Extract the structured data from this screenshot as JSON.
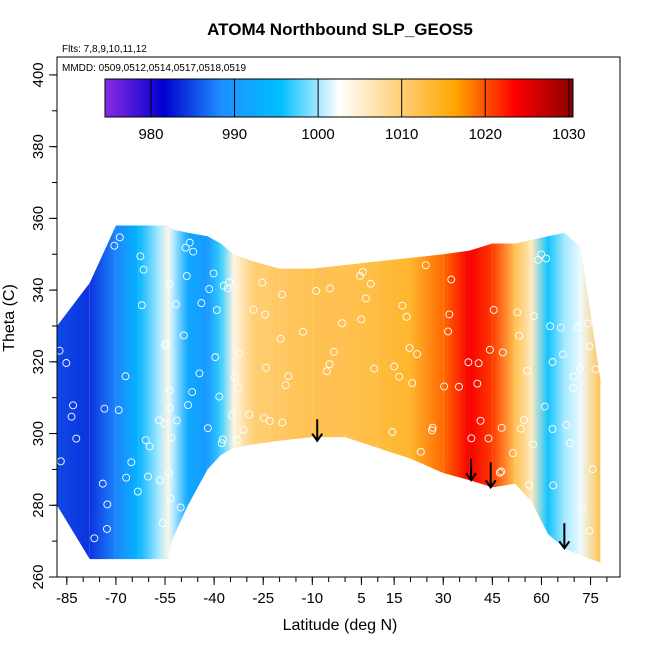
{
  "chart_data": {
    "type": "heatmap",
    "title": "ATOM4 Northbound SLP_GEOS5",
    "annotations": [
      "Flts: 7,8,9,10,11,12",
      "MMDD: 0509,0512,0514,0517,0518,0519"
    ],
    "xlabel": "Latitude (deg N)",
    "ylabel": "Theta (C)",
    "xlim": [
      -88,
      84
    ],
    "ylim": [
      260,
      405
    ],
    "x_ticks": [
      -85,
      -70,
      -55,
      -40,
      -25,
      -10,
      5,
      15,
      30,
      45,
      60,
      75
    ],
    "y_ticks": [
      260,
      280,
      300,
      320,
      340,
      360,
      380,
      400
    ],
    "colorbar": {
      "label": "",
      "range": [
        974.5,
        1030.5
      ],
      "ticks": [
        980,
        990,
        1000,
        1010,
        1020,
        1030
      ],
      "colors": [
        "#8a2be2",
        "#0000cd",
        "#1e90ff",
        "#00bfff",
        "#ffffff",
        "#ffd27f",
        "#ffa500",
        "#ff0000",
        "#8b0000"
      ]
    },
    "columns": [
      {
        "x": -88,
        "bottom": 280,
        "top": 330,
        "value": 985
      },
      {
        "x": -78,
        "bottom": 265,
        "top": 342,
        "value": 984
      },
      {
        "x": -70,
        "bottom": 265,
        "top": 358,
        "value": 988
      },
      {
        "x": -63,
        "bottom": 265,
        "top": 358,
        "value": 994
      },
      {
        "x": -57,
        "bottom": 265,
        "top": 358,
        "value": 1000
      },
      {
        "x": -54,
        "bottom": 265,
        "top": 358,
        "value": 1004
      },
      {
        "x": -53,
        "bottom": 270,
        "top": 357,
        "value": 1001
      },
      {
        "x": -48,
        "bottom": 280,
        "top": 356,
        "value": 992
      },
      {
        "x": -42,
        "bottom": 290,
        "top": 355,
        "value": 990
      },
      {
        "x": -38,
        "bottom": 294,
        "top": 353,
        "value": 997
      },
      {
        "x": -34,
        "bottom": 296,
        "top": 350,
        "value": 1004
      },
      {
        "x": -28,
        "bottom": 297,
        "top": 348,
        "value": 1010
      },
      {
        "x": -20,
        "bottom": 298,
        "top": 346,
        "value": 1011
      },
      {
        "x": -10,
        "bottom": 299,
        "top": 346,
        "value": 1012
      },
      {
        "x": 0,
        "bottom": 299,
        "top": 347,
        "value": 1012
      },
      {
        "x": 10,
        "bottom": 296,
        "top": 348,
        "value": 1013
      },
      {
        "x": 20,
        "bottom": 293,
        "top": 349,
        "value": 1014
      },
      {
        "x": 30,
        "bottom": 289,
        "top": 350,
        "value": 1019
      },
      {
        "x": 38,
        "bottom": 287,
        "top": 351,
        "value": 1024
      },
      {
        "x": 45,
        "bottom": 285,
        "top": 353,
        "value": 1021
      },
      {
        "x": 52,
        "bottom": 286,
        "top": 353,
        "value": 1012
      },
      {
        "x": 57,
        "bottom": 281,
        "top": 354,
        "value": 1006
      },
      {
        "x": 62,
        "bottom": 272,
        "top": 355,
        "value": 996
      },
      {
        "x": 67,
        "bottom": 268,
        "top": 356,
        "value": 1000
      },
      {
        "x": 72,
        "bottom": 266,
        "top": 352,
        "value": 1002
      },
      {
        "x": 78,
        "bottom": 264,
        "top": 315,
        "value": 1012
      }
    ],
    "arrows": [
      {
        "x": -8.5,
        "theta_top": 304,
        "theta_bottom": 298
      },
      {
        "x": 38.5,
        "theta_top": 293,
        "theta_bottom": 287
      },
      {
        "x": 44.5,
        "theta_top": 292,
        "theta_bottom": 285
      },
      {
        "x": 67,
        "theta_top": 275,
        "theta_bottom": 268
      }
    ]
  }
}
